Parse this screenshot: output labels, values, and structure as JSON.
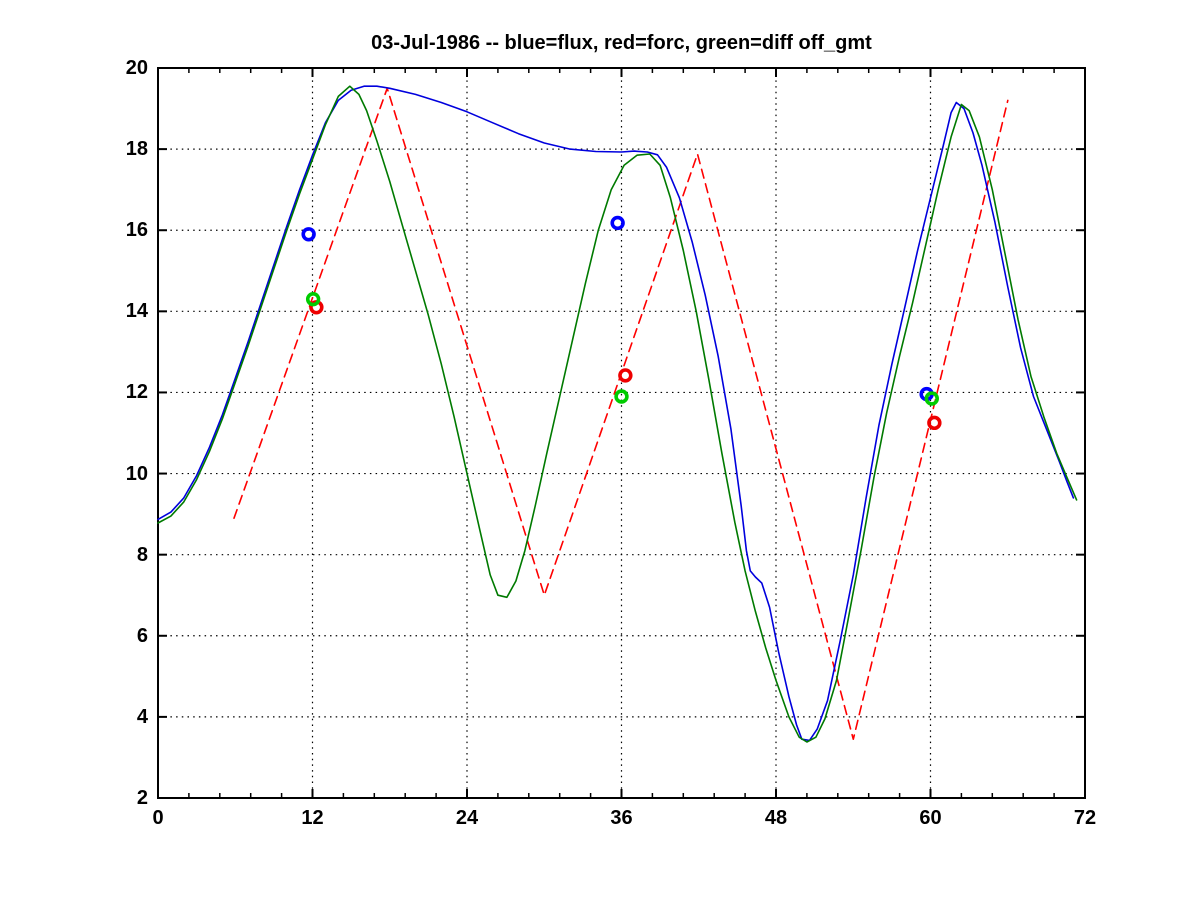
{
  "title": {
    "text": "03-Jul-1986 -- blue=flux, red=forc, green=diff off_gmt"
  },
  "axes": {
    "x": {
      "min": 0,
      "max": 72,
      "tick_values": [
        0,
        12,
        24,
        36,
        48,
        60,
        72
      ],
      "tick_labels": [
        "0",
        "12",
        "24",
        "36",
        "48",
        "60",
        "72"
      ],
      "minor_tick_step": 2.4,
      "grid_values": [
        12,
        24,
        36,
        48,
        60
      ]
    },
    "y": {
      "min": 2,
      "max": 20,
      "tick_values": [
        2,
        4,
        6,
        8,
        10,
        12,
        14,
        16,
        18,
        20
      ],
      "tick_labels": [
        "2",
        "4",
        "6",
        "8",
        "10",
        "12",
        "14",
        "16",
        "18",
        "20"
      ],
      "grid_values": [
        4,
        6,
        8,
        10,
        12,
        14,
        16,
        18
      ]
    }
  },
  "chart_data": {
    "type": "line",
    "title": "03-Jul-1986 -- blue=flux, red=forc, green=diff off_gmt",
    "xlabel": "",
    "ylabel": "",
    "xlim": [
      0,
      72
    ],
    "ylim": [
      2,
      20
    ],
    "grid": "dotted",
    "legend": "encoded in title: blue=flux, red=forc, green=diff",
    "series": [
      {
        "name": "forc",
        "color": "#ff0000",
        "line_style": "dashed",
        "points": [
          [
            5.9,
            8.9
          ],
          [
            17.8,
            19.5
          ],
          [
            30,
            7.0
          ],
          [
            41.9,
            17.88
          ],
          [
            54,
            3.45
          ],
          [
            66,
            19.2
          ]
        ]
      },
      {
        "name": "flux",
        "color": "#0000dd",
        "line_style": "solid",
        "points": [
          [
            0,
            8.87
          ],
          [
            1,
            9.05
          ],
          [
            2,
            9.4
          ],
          [
            3,
            9.95
          ],
          [
            4,
            10.65
          ],
          [
            5,
            11.45
          ],
          [
            6,
            12.35
          ],
          [
            7,
            13.25
          ],
          [
            8,
            14.2
          ],
          [
            9,
            15.15
          ],
          [
            10,
            16.1
          ],
          [
            11,
            17.0
          ],
          [
            12,
            17.85
          ],
          [
            13,
            18.65
          ],
          [
            14,
            19.2
          ],
          [
            15,
            19.45
          ],
          [
            16,
            19.55
          ],
          [
            17,
            19.55
          ],
          [
            18,
            19.5
          ],
          [
            20,
            19.35
          ],
          [
            22,
            19.15
          ],
          [
            24,
            18.92
          ],
          [
            26,
            18.65
          ],
          [
            28,
            18.38
          ],
          [
            30,
            18.15
          ],
          [
            32,
            18.0
          ],
          [
            34,
            17.94
          ],
          [
            36,
            17.93
          ],
          [
            37,
            17.95
          ],
          [
            38,
            17.93
          ],
          [
            38.8,
            17.86
          ],
          [
            39.5,
            17.55
          ],
          [
            40.5,
            16.8
          ],
          [
            41.5,
            15.7
          ],
          [
            42.5,
            14.4
          ],
          [
            43.5,
            12.9
          ],
          [
            44.5,
            11.1
          ],
          [
            45.3,
            9.2
          ],
          [
            45.7,
            8.1
          ],
          [
            46,
            7.6
          ],
          [
            46.4,
            7.45
          ],
          [
            46.9,
            7.3
          ],
          [
            47.5,
            6.7
          ],
          [
            48.2,
            5.6
          ],
          [
            49,
            4.5
          ],
          [
            49.6,
            3.8
          ],
          [
            50,
            3.45
          ],
          [
            50.6,
            3.42
          ],
          [
            51.2,
            3.7
          ],
          [
            52,
            4.4
          ],
          [
            53,
            5.9
          ],
          [
            54,
            7.5
          ],
          [
            55,
            9.4
          ],
          [
            56,
            11.2
          ],
          [
            57,
            12.7
          ],
          [
            58,
            14.1
          ],
          [
            59,
            15.5
          ],
          [
            60,
            16.8
          ],
          [
            61,
            18.1
          ],
          [
            61.6,
            18.9
          ],
          [
            62,
            19.15
          ],
          [
            62.6,
            19.0
          ],
          [
            63.3,
            18.4
          ],
          [
            64,
            17.6
          ],
          [
            65,
            16.2
          ],
          [
            66,
            14.6
          ],
          [
            67,
            13.1
          ],
          [
            68,
            11.9
          ],
          [
            69,
            11.1
          ],
          [
            70,
            10.3
          ],
          [
            70.6,
            9.8
          ],
          [
            71.1,
            9.4
          ]
        ]
      },
      {
        "name": "diff",
        "color": "#007a00",
        "line_style": "solid",
        "points": [
          [
            0,
            8.78
          ],
          [
            1,
            8.95
          ],
          [
            2,
            9.3
          ],
          [
            3,
            9.85
          ],
          [
            4,
            10.55
          ],
          [
            5,
            11.35
          ],
          [
            6,
            12.25
          ],
          [
            7,
            13.15
          ],
          [
            8,
            14.1
          ],
          [
            9,
            15.05
          ],
          [
            10,
            16.0
          ],
          [
            11,
            16.9
          ],
          [
            12,
            17.75
          ],
          [
            13,
            18.6
          ],
          [
            14,
            19.3
          ],
          [
            14.9,
            19.55
          ],
          [
            15.6,
            19.35
          ],
          [
            16.2,
            18.95
          ],
          [
            17,
            18.2
          ],
          [
            18,
            17.2
          ],
          [
            19,
            16.1
          ],
          [
            20,
            15.0
          ],
          [
            21,
            13.9
          ],
          [
            22,
            12.7
          ],
          [
            23,
            11.4
          ],
          [
            24,
            10.0
          ],
          [
            25,
            8.6
          ],
          [
            25.8,
            7.5
          ],
          [
            26.4,
            7.0
          ],
          [
            27.1,
            6.95
          ],
          [
            27.8,
            7.35
          ],
          [
            28.5,
            8.1
          ],
          [
            29.3,
            9.2
          ],
          [
            30.2,
            10.5
          ],
          [
            31.2,
            11.9
          ],
          [
            32.2,
            13.3
          ],
          [
            33.2,
            14.7
          ],
          [
            34.2,
            16.0
          ],
          [
            35.2,
            17.0
          ],
          [
            36.2,
            17.6
          ],
          [
            37.2,
            17.85
          ],
          [
            38.2,
            17.88
          ],
          [
            39,
            17.6
          ],
          [
            39.8,
            16.8
          ],
          [
            40.8,
            15.5
          ],
          [
            41.8,
            14.0
          ],
          [
            42.8,
            12.3
          ],
          [
            43.8,
            10.5
          ],
          [
            44.8,
            8.8
          ],
          [
            45.6,
            7.6
          ],
          [
            46.4,
            6.6
          ],
          [
            47.2,
            5.7
          ],
          [
            48,
            4.9
          ],
          [
            49,
            4.0
          ],
          [
            49.8,
            3.5
          ],
          [
            50.4,
            3.38
          ],
          [
            51.1,
            3.5
          ],
          [
            51.8,
            3.95
          ],
          [
            52.7,
            4.9
          ],
          [
            53.6,
            6.4
          ],
          [
            54.6,
            8.1
          ],
          [
            55.6,
            9.9
          ],
          [
            56.6,
            11.5
          ],
          [
            57.6,
            12.9
          ],
          [
            58.6,
            14.2
          ],
          [
            59.6,
            15.6
          ],
          [
            60.6,
            17.0
          ],
          [
            61.6,
            18.3
          ],
          [
            62.4,
            19.1
          ],
          [
            63,
            18.95
          ],
          [
            63.8,
            18.3
          ],
          [
            64.8,
            17.0
          ],
          [
            65.8,
            15.4
          ],
          [
            66.8,
            13.8
          ],
          [
            67.8,
            12.4
          ],
          [
            68.8,
            11.4
          ],
          [
            69.8,
            10.5
          ],
          [
            70.6,
            9.9
          ],
          [
            71.35,
            9.35
          ]
        ]
      }
    ],
    "point_markers": [
      {
        "series": "flux",
        "shape": "circle",
        "color": "#0000ff",
        "points": [
          [
            11.7,
            15.9
          ],
          [
            35.7,
            16.18
          ],
          [
            59.7,
            11.96
          ]
        ]
      },
      {
        "series": "forc",
        "shape": "circle",
        "color": "#ee0000",
        "points": [
          [
            12.3,
            14.1
          ],
          [
            36.3,
            12.42
          ],
          [
            60.3,
            11.25
          ]
        ]
      },
      {
        "series": "diff",
        "shape": "circle",
        "color": "#00cc00",
        "points": [
          [
            12.05,
            14.3
          ],
          [
            36.0,
            11.9
          ],
          [
            60.1,
            11.85
          ]
        ]
      }
    ]
  },
  "layout_colors": {
    "axis": "#000000",
    "grid": "#000000",
    "background": "#ffffff"
  }
}
